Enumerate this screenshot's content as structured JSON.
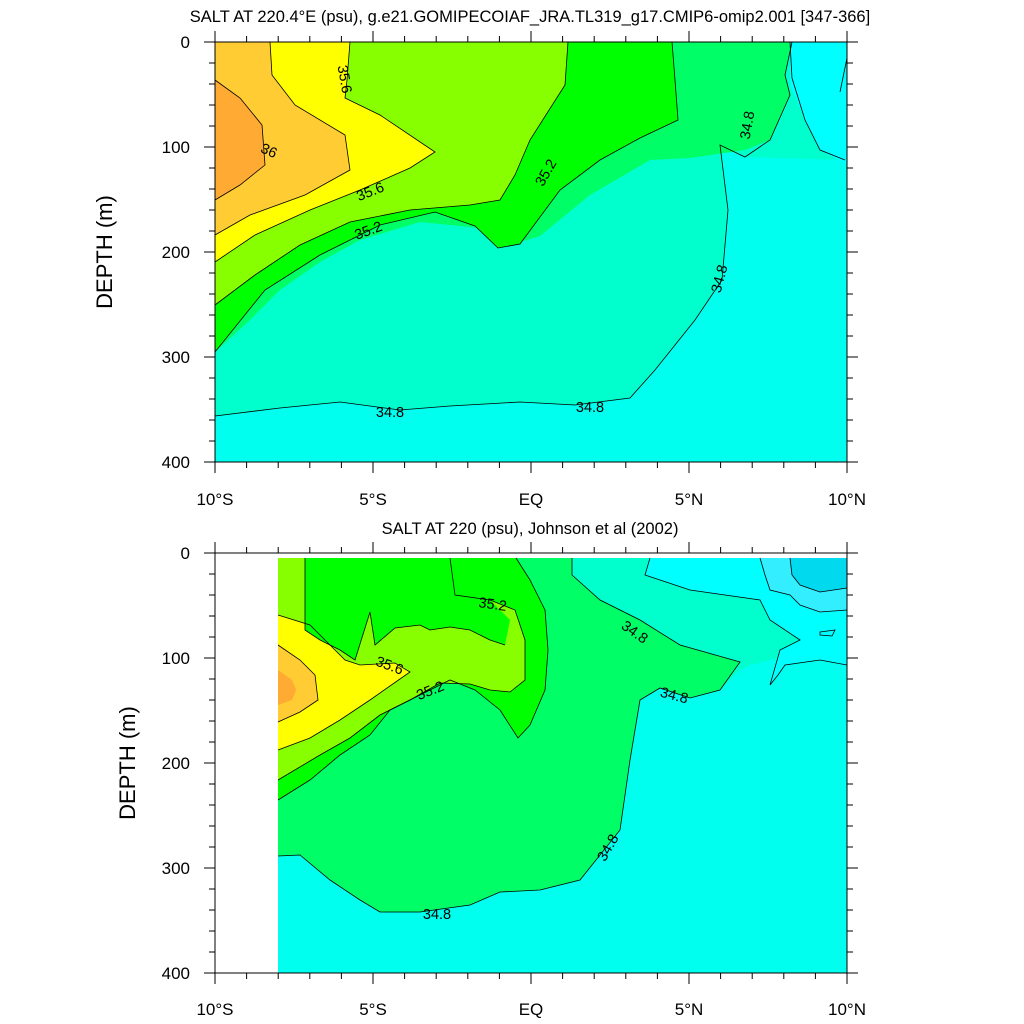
{
  "chart_data": [
    {
      "type": "contour",
      "title": "SALT AT 220.4°E (psu), g.e21.GOMIPECOIAF_JRA.TL319_g17.CMIP6-omip2.001 [347-366]",
      "ylabel": "DEPTH (m)",
      "xlim": [
        -10,
        10
      ],
      "ylim": [
        0,
        400
      ],
      "y_reversed": true,
      "x_tick_labels": [
        "10°S",
        "5°S",
        "EQ",
        "5°N",
        "10°N"
      ],
      "y_tick_labels": [
        "0",
        "100",
        "200",
        "300",
        "400"
      ],
      "contour_levels": [
        34.4,
        34.6,
        34.8,
        35.0,
        35.2,
        35.4,
        35.6,
        35.8,
        36.0,
        36.2
      ],
      "contour_labels": [
        "35.6",
        "36",
        "35.6",
        "35.2",
        "35.2",
        "34.8",
        "34.8",
        "34.8",
        "34.8"
      ],
      "data_start_lat": -10
    },
    {
      "type": "contour",
      "title": "SALT AT 220 (psu), Johnson et al (2002)",
      "ylabel": "DEPTH (m)",
      "xlim": [
        -10,
        10
      ],
      "ylim": [
        0,
        400
      ],
      "y_reversed": true,
      "x_tick_labels": [
        "10°S",
        "5°S",
        "EQ",
        "5°N",
        "10°N"
      ],
      "y_tick_labels": [
        "0",
        "100",
        "200",
        "300",
        "400"
      ],
      "contour_levels": [
        34.4,
        34.6,
        34.8,
        35.0,
        35.2,
        35.4,
        35.6,
        35.8,
        36.0
      ],
      "contour_labels": [
        "35.2",
        "35.6",
        "35.2",
        "34.8",
        "34.8",
        "34.8",
        "34.8"
      ],
      "data_start_lat": -8
    }
  ],
  "colors": {
    "fill_band_colors": [
      "#00ffff",
      "#00fff0",
      "#00ffcc",
      "#00ff66",
      "#00ff00",
      "#88ff00",
      "#ffff00",
      "#ffcc33",
      "#ffaa33"
    ],
    "fill_deep_cyan": "#00d9ee",
    "fill_light_cyan": "#33eeff",
    "contour_line": "#000000"
  }
}
